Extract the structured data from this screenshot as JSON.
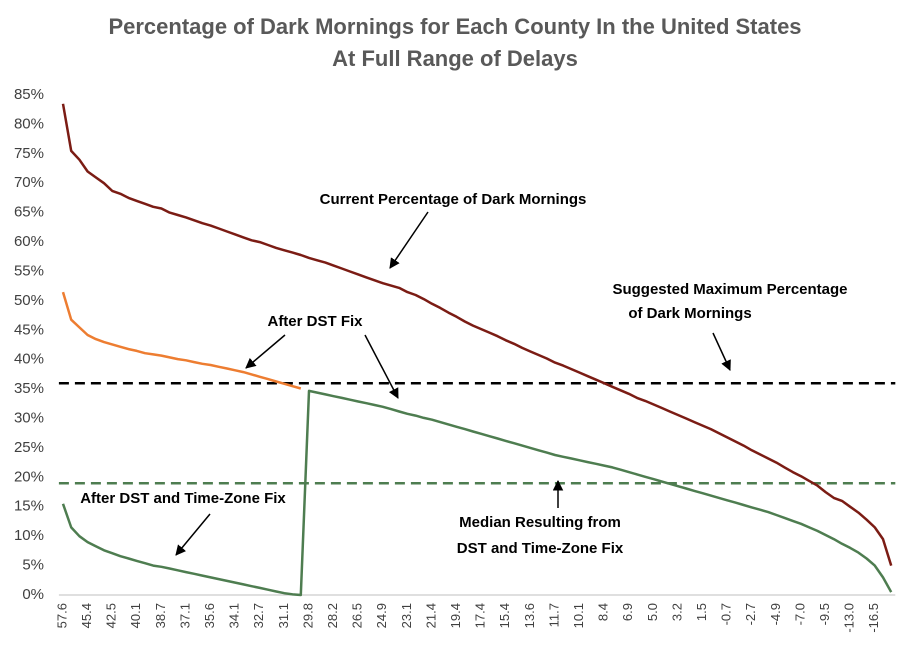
{
  "chart_data": {
    "type": "line",
    "title": "Percentage of Dark Mornings for Each County In the United States",
    "subtitle": "At Full Range of Delays",
    "categories": [
      "57.6",
      null,
      null,
      "45.4",
      null,
      null,
      "42.5",
      null,
      null,
      "40.1",
      null,
      null,
      "38.7",
      null,
      null,
      "37.1",
      null,
      null,
      "35.6",
      null,
      null,
      "34.1",
      null,
      null,
      "32.7",
      null,
      null,
      "31.1",
      null,
      null,
      "29.8",
      null,
      null,
      "28.2",
      null,
      null,
      "26.5",
      null,
      null,
      "24.9",
      null,
      null,
      "23.1",
      null,
      null,
      "21.4",
      null,
      null,
      "19.4",
      null,
      null,
      "17.4",
      null,
      null,
      "15.4",
      null,
      null,
      "13.6",
      null,
      null,
      "11.7",
      null,
      null,
      "10.1",
      null,
      null,
      "8.4",
      null,
      null,
      "6.9",
      null,
      null,
      "5.0",
      null,
      null,
      "3.2",
      null,
      null,
      "1.5",
      null,
      null,
      "-0.7",
      null,
      null,
      "-2.7",
      null,
      null,
      "-4.9",
      null,
      null,
      "-7.0",
      null,
      null,
      "-9.5",
      null,
      null,
      "-13.0",
      null,
      null,
      "-16.5",
      null,
      null
    ],
    "series": [
      {
        "color": "#7b1c14",
        "values": [
          83.5,
          75.5,
          74,
          72,
          71,
          70,
          68.7,
          68.2,
          67.5,
          67,
          66.5,
          66,
          65.7,
          65,
          64.6,
          64.2,
          63.7,
          63.2,
          62.8,
          62.3,
          61.8,
          61.3,
          60.8,
          60.3,
          60,
          59.5,
          59,
          58.6,
          58.2,
          57.8,
          57.3,
          56.9,
          56.5,
          56,
          55.5,
          55,
          54.5,
          54,
          53.5,
          53,
          52.6,
          52.2,
          51.5,
          51,
          50.3,
          49.5,
          48.8,
          48,
          47.3,
          46.5,
          45.8,
          45.2,
          44.6,
          44,
          43.3,
          42.7,
          42,
          41.4,
          40.8,
          40.2,
          39.5,
          39,
          38.4,
          37.8,
          37.2,
          36.6,
          36,
          35.4,
          34.8,
          34.2,
          33.5,
          33,
          32.4,
          31.8,
          31.2,
          30.6,
          30,
          29.4,
          28.8,
          28.2,
          27.5,
          26.8,
          26.1,
          25.4,
          24.6,
          23.9,
          23.2,
          22.5,
          21.7,
          20.9,
          20.2,
          19.4,
          18.6,
          17.5,
          16.5,
          16,
          15,
          14,
          12.8,
          11.5,
          9.5,
          5
        ]
      },
      {
        "color": "#ed7d31",
        "values": [
          51.5,
          46.8,
          45.5,
          44.2,
          43.5,
          43,
          42.6,
          42.2,
          41.8,
          41.5,
          41.1,
          40.9,
          40.7,
          40.4,
          40.1,
          39.9,
          39.6,
          39.3,
          39.1,
          38.8,
          38.5,
          38.2,
          37.9,
          37.5,
          37.1,
          36.7,
          36.3,
          35.9,
          35.5,
          35.1,
          null,
          null,
          null,
          null,
          null,
          null,
          null,
          null,
          null,
          null,
          null,
          null,
          null,
          null,
          null,
          null,
          null,
          null,
          null,
          null,
          null,
          null,
          null,
          null,
          null,
          null,
          null,
          null,
          null,
          null,
          null,
          null,
          null,
          null,
          null,
          null,
          null,
          null,
          null,
          null,
          null,
          null,
          null,
          null,
          null,
          null,
          null,
          null,
          null,
          null,
          null,
          null,
          null,
          null,
          null,
          null,
          null,
          null,
          null,
          null,
          null,
          null,
          null,
          null,
          null,
          null,
          null,
          null,
          null,
          null,
          null,
          null
        ]
      },
      {
        "color": "#4e7d50",
        "values": [
          15.5,
          11.5,
          10,
          9,
          8.3,
          7.6,
          7.1,
          6.6,
          6.2,
          5.8,
          5.4,
          5,
          4.8,
          4.5,
          4.2,
          3.9,
          3.6,
          3.3,
          3,
          2.7,
          2.4,
          2.1,
          1.8,
          1.5,
          1.2,
          0.9,
          0.6,
          0.3,
          0.1,
          0,
          34.7,
          34.4,
          34.1,
          33.8,
          33.5,
          33.2,
          32.9,
          32.6,
          32.3,
          32,
          31.6,
          31.2,
          30.8,
          30.5,
          30.1,
          29.8,
          29.4,
          29,
          28.6,
          28.2,
          27.8,
          27.4,
          27,
          26.6,
          26.2,
          25.8,
          25.4,
          25,
          24.6,
          24.2,
          23.8,
          23.5,
          23.2,
          22.9,
          22.6,
          22.3,
          22,
          21.7,
          21.3,
          20.9,
          20.5,
          20.1,
          19.7,
          19.3,
          18.9,
          18.5,
          18.1,
          17.7,
          17.3,
          16.9,
          16.5,
          16.1,
          15.7,
          15.3,
          14.9,
          14.5,
          14.1,
          13.6,
          13.1,
          12.6,
          12.1,
          11.5,
          10.9,
          10.2,
          9.5,
          8.7,
          8,
          7.2,
          6.2,
          5,
          3,
          0.5
        ]
      }
    ],
    "reference_lines": [
      {
        "value": 36,
        "color": "#000000"
      },
      {
        "value": 19,
        "color": "#4e7d50"
      }
    ],
    "annotations": [
      [
        "Current Percentage of Dark Mornings"
      ],
      [
        "Suggested Maximum Percentage",
        "of Dark Mornings"
      ],
      [
        "After DST Fix"
      ],
      [
        "After DST and Time-Zone Fix"
      ],
      [
        "Median Resulting from",
        "DST and Time-Zone Fix"
      ]
    ],
    "ylim": [
      0,
      85
    ],
    "yticks": [
      {
        "value": 0,
        "label": "0%"
      },
      {
        "value": 5,
        "label": "5%"
      },
      {
        "value": 10,
        "label": "10%"
      },
      {
        "value": 15,
        "label": "15%"
      },
      {
        "value": 20,
        "label": "20%"
      },
      {
        "value": 25,
        "label": "25%"
      },
      {
        "value": 30,
        "label": "30%"
      },
      {
        "value": 35,
        "label": "35%"
      },
      {
        "value": 40,
        "label": "40%"
      },
      {
        "value": 45,
        "label": "45%"
      },
      {
        "value": 50,
        "label": "50%"
      },
      {
        "value": 55,
        "label": "55%"
      },
      {
        "value": 60,
        "label": "60%"
      },
      {
        "value": 65,
        "label": "65%"
      },
      {
        "value": 70,
        "label": "70%"
      },
      {
        "value": 75,
        "label": "75%"
      },
      {
        "value": 80,
        "label": "80%"
      },
      {
        "value": 85,
        "label": "85%"
      }
    ]
  }
}
